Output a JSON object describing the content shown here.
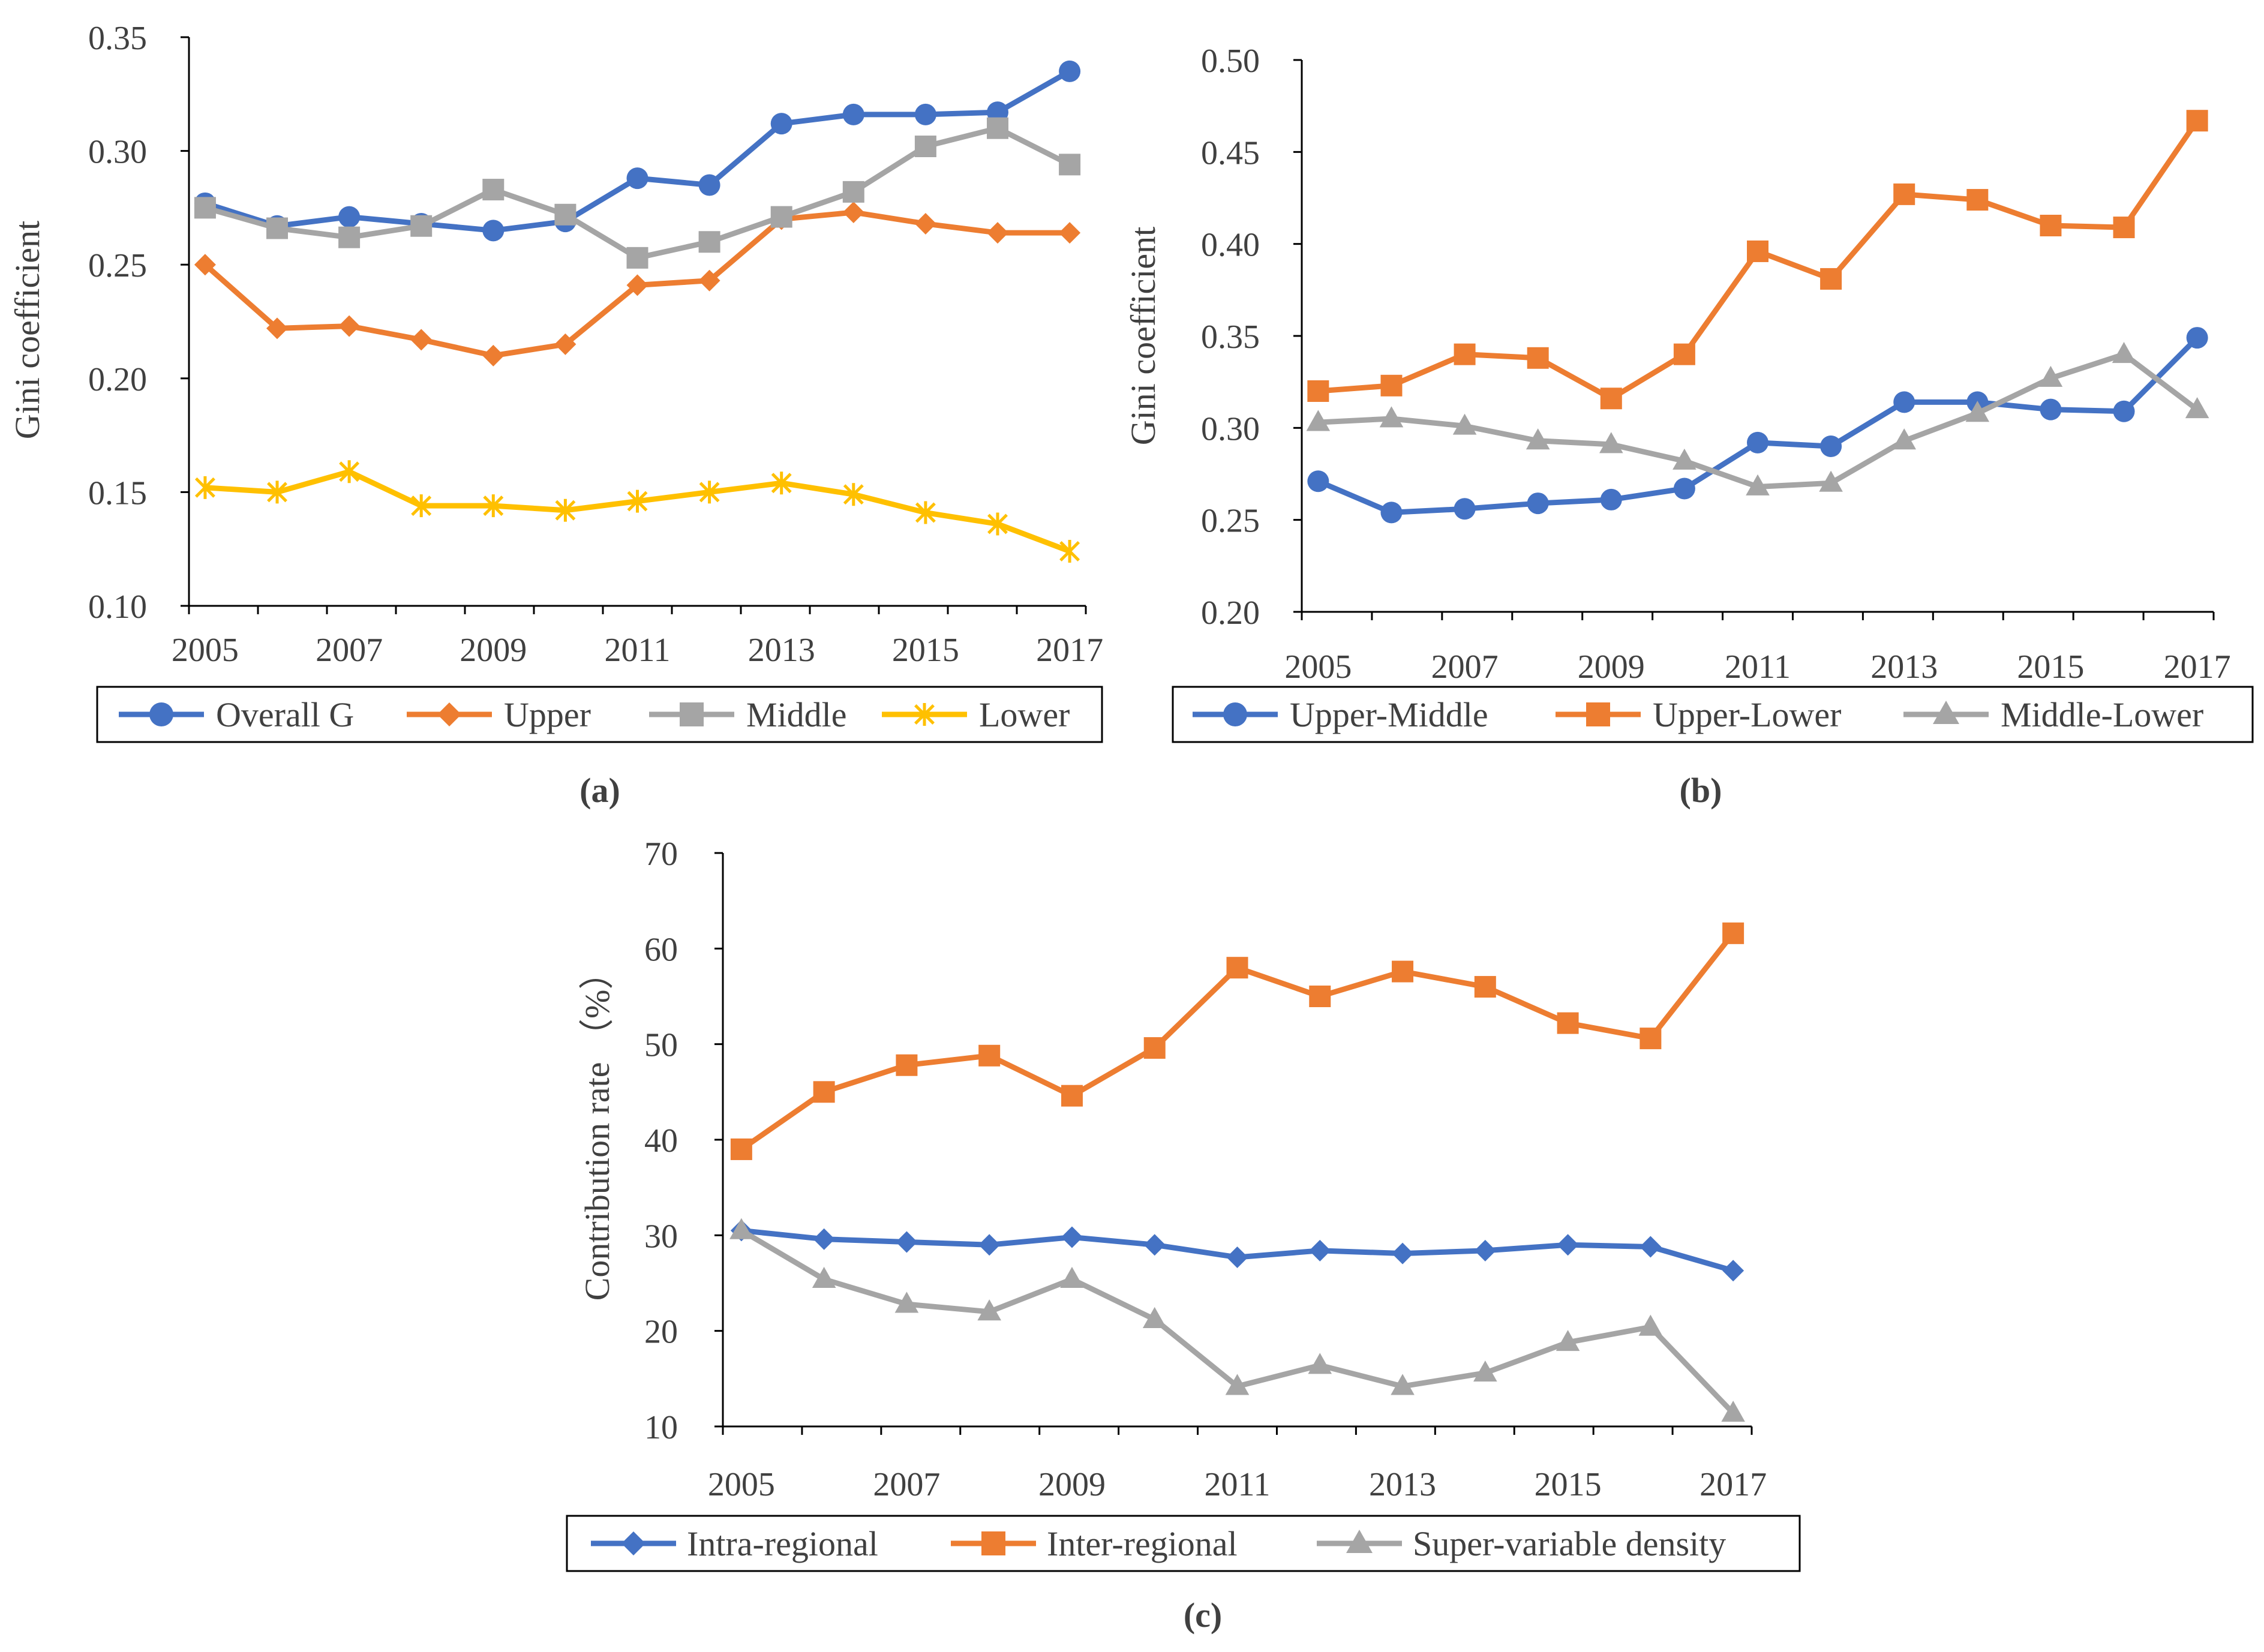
{
  "chart_data": [
    {
      "id": "a",
      "type": "line",
      "panel_label": "(a)",
      "title": "",
      "xlabel": "",
      "ylabel": "Gini coefficient",
      "ylim": [
        0.1,
        0.35
      ],
      "yticks": [
        "0.10",
        "0.15",
        "0.20",
        "0.25",
        "0.30",
        "0.35"
      ],
      "x": [
        2005,
        2006,
        2007,
        2008,
        2009,
        2010,
        2011,
        2012,
        2013,
        2014,
        2015,
        2016,
        2017
      ],
      "xtick_labels": [
        "2005",
        "2007",
        "2009",
        "2011",
        "2013",
        "2015",
        "2017"
      ],
      "grid": false,
      "legend_position": "bottom",
      "series": [
        {
          "name": "Overall G",
          "color": "#4472C4",
          "marker": "circle",
          "values": [
            0.277,
            0.267,
            0.271,
            0.268,
            0.265,
            0.269,
            0.288,
            0.285,
            0.312,
            0.316,
            0.316,
            0.317,
            0.335
          ]
        },
        {
          "name": "Upper",
          "color": "#ED7D31",
          "marker": "diamond",
          "values": [
            0.25,
            0.222,
            0.223,
            0.217,
            0.21,
            0.215,
            0.241,
            0.243,
            0.27,
            0.273,
            0.268,
            0.264,
            0.264
          ]
        },
        {
          "name": "Middle",
          "color": "#A5A5A5",
          "marker": "square",
          "values": [
            0.275,
            0.266,
            0.262,
            0.267,
            0.283,
            0.272,
            0.253,
            0.26,
            0.271,
            0.282,
            0.302,
            0.31,
            0.294
          ]
        },
        {
          "name": "Lower",
          "color": "#FFC000",
          "marker": "star",
          "values": [
            0.152,
            0.15,
            0.159,
            0.144,
            0.144,
            0.142,
            0.146,
            0.15,
            0.154,
            0.149,
            0.141,
            0.136,
            0.124
          ]
        }
      ]
    },
    {
      "id": "b",
      "type": "line",
      "panel_label": "(b)",
      "title": "",
      "xlabel": "",
      "ylabel": "Gini coefficient",
      "ylim": [
        0.2,
        0.5
      ],
      "yticks": [
        "0.20",
        "0.25",
        "0.30",
        "0.35",
        "0.40",
        "0.45",
        "0.50"
      ],
      "x": [
        2005,
        2006,
        2007,
        2008,
        2009,
        2010,
        2011,
        2012,
        2013,
        2014,
        2015,
        2016,
        2017
      ],
      "xtick_labels": [
        "2005",
        "2007",
        "2009",
        "2011",
        "2013",
        "2015",
        "2017"
      ],
      "grid": false,
      "legend_position": "bottom",
      "series": [
        {
          "name": "Upper-Middle",
          "color": "#4472C4",
          "marker": "circle",
          "values": [
            0.271,
            0.254,
            0.256,
            0.259,
            0.261,
            0.267,
            0.292,
            0.29,
            0.314,
            0.314,
            0.31,
            0.309,
            0.349
          ]
        },
        {
          "name": "Upper-Lower",
          "color": "#ED7D31",
          "marker": "square",
          "values": [
            0.32,
            0.323,
            0.34,
            0.338,
            0.316,
            0.34,
            0.396,
            0.381,
            0.427,
            0.424,
            0.41,
            0.409,
            0.467
          ]
        },
        {
          "name": "Middle-Lower",
          "color": "#A5A5A5",
          "marker": "triangle",
          "values": [
            0.303,
            0.305,
            0.301,
            0.293,
            0.291,
            0.282,
            0.268,
            0.27,
            0.293,
            0.308,
            0.327,
            0.34,
            0.31
          ]
        }
      ]
    },
    {
      "id": "c",
      "type": "line",
      "panel_label": "(c)",
      "title": "",
      "xlabel": "",
      "ylabel": "Contribution rate （%）",
      "ylim": [
        10,
        70
      ],
      "yticks": [
        "10",
        "20",
        "30",
        "40",
        "50",
        "60",
        "70"
      ],
      "x": [
        2005,
        2006,
        2007,
        2008,
        2009,
        2010,
        2011,
        2012,
        2013,
        2014,
        2015,
        2016,
        2017
      ],
      "xtick_labels": [
        "2005",
        "2007",
        "2009",
        "2011",
        "2013",
        "2015",
        "2017"
      ],
      "grid": false,
      "legend_position": "bottom",
      "series": [
        {
          "name": "Intra-regional",
          "color": "#4472C4",
          "marker": "diamond",
          "values": [
            30.5,
            29.6,
            29.3,
            29.0,
            29.8,
            29.0,
            27.7,
            28.4,
            28.1,
            28.4,
            29.0,
            28.8,
            26.3
          ]
        },
        {
          "name": "Inter-regional",
          "color": "#ED7D31",
          "marker": "square",
          "values": [
            39.0,
            45.0,
            47.8,
            48.8,
            44.6,
            49.6,
            58.0,
            55.0,
            57.6,
            56.0,
            52.2,
            50.6,
            61.6
          ]
        },
        {
          "name": "Super-variable density",
          "color": "#A5A5A5",
          "marker": "triangle",
          "values": [
            30.5,
            25.4,
            22.8,
            22.0,
            25.4,
            21.2,
            14.2,
            16.4,
            14.2,
            15.6,
            18.8,
            20.4,
            11.4
          ]
        }
      ]
    }
  ]
}
